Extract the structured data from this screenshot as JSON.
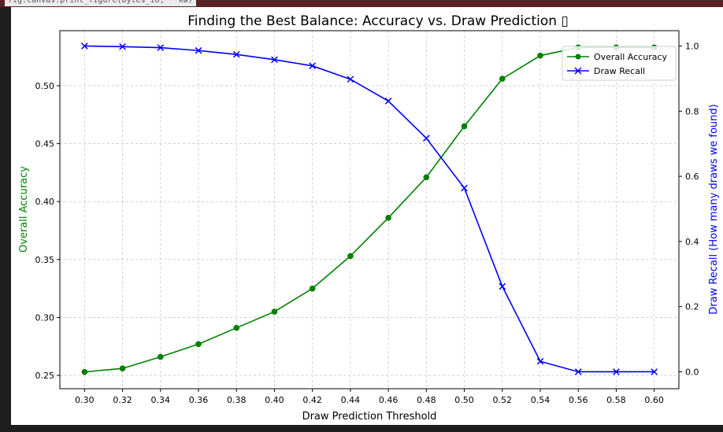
{
  "notebook": {
    "code_line": "fig.canvas.print_figure(bytes_io, **kw)"
  },
  "chart_data": {
    "type": "line",
    "title": "Finding the Best Balance: Accuracy vs. Draw Prediction ▯",
    "xlabel": "Draw Prediction Threshold",
    "ylabel_left": "Overall Accuracy",
    "ylabel_right": "Draw Recall (How many draws we found)",
    "x": [
      0.3,
      0.32,
      0.34,
      0.36,
      0.38,
      0.4,
      0.42,
      0.44,
      0.46,
      0.48,
      0.5,
      0.52,
      0.54,
      0.56,
      0.58,
      0.6
    ],
    "x_tick_labels": [
      "0.30",
      "0.32",
      "0.34",
      "0.36",
      "0.38",
      "0.40",
      "0.42",
      "0.44",
      "0.46",
      "0.48",
      "0.50",
      "0.52",
      "0.54",
      "0.56",
      "0.58",
      "0.60"
    ],
    "xlim": [
      0.287,
      0.613
    ],
    "ylim_left": [
      0.2385,
      0.5475
    ],
    "ylim_right": [
      -0.052,
      1.047
    ],
    "left_ticks": [
      0.25,
      0.3,
      0.35,
      0.4,
      0.45,
      0.5
    ],
    "left_tick_labels": [
      "0.25",
      "0.30",
      "0.35",
      "0.40",
      "0.45",
      "0.50"
    ],
    "right_ticks": [
      0.0,
      0.2,
      0.4,
      0.6,
      0.8,
      1.0
    ],
    "right_tick_labels": [
      "0.0",
      "0.2",
      "0.4",
      "0.6",
      "0.8",
      "1.0"
    ],
    "grid": true,
    "legend_position": "top-right",
    "series": [
      {
        "name": "Overall Accuracy",
        "axis": "left",
        "color": "#008000",
        "marker": "o",
        "values": [
          0.253,
          0.256,
          0.266,
          0.277,
          0.291,
          0.305,
          0.325,
          0.353,
          0.386,
          0.421,
          0.465,
          0.506,
          0.526,
          0.533,
          0.533,
          0.533
        ]
      },
      {
        "name": "Draw Recall",
        "axis": "right",
        "color": "#0000ff",
        "marker": "x",
        "values": [
          1.0,
          0.998,
          0.995,
          0.986,
          0.974,
          0.958,
          0.939,
          0.898,
          0.831,
          0.717,
          0.564,
          0.262,
          0.032,
          0.0,
          0.0,
          0.0
        ]
      }
    ]
  }
}
